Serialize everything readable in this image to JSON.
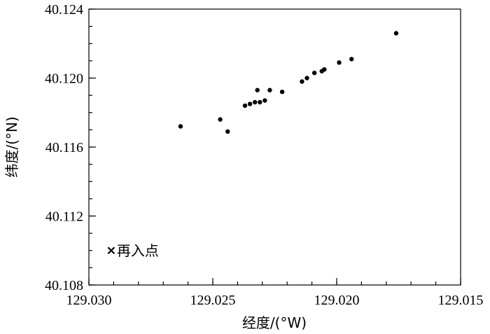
{
  "chart_data": {
    "type": "scatter",
    "xlabel": "经度/(°W)",
    "ylabel": "纬度/(°N)",
    "xlim": [
      129.03,
      129.015
    ],
    "ylim": [
      40.108,
      40.124
    ],
    "x_reversed": true,
    "x_ticks": [
      129.03,
      129.025,
      129.02,
      129.015
    ],
    "x_tick_labels": [
      "129.030",
      "129.025",
      "129.020",
      "129.015"
    ],
    "x_minor_step": 0.001,
    "y_ticks": [
      40.108,
      40.112,
      40.116,
      40.12,
      40.124
    ],
    "y_tick_labels": [
      "40.108",
      "40.112",
      "40.116",
      "40.120",
      "40.124"
    ],
    "y_minor_step": 0.001,
    "grid": false,
    "series": [
      {
        "marker": "dot",
        "points": [
          {
            "x": 129.0263,
            "y": 40.1172
          },
          {
            "x": 129.0247,
            "y": 40.1176
          },
          {
            "x": 129.0244,
            "y": 40.1169
          },
          {
            "x": 129.0237,
            "y": 40.1184
          },
          {
            "x": 129.0235,
            "y": 40.1185
          },
          {
            "x": 129.0233,
            "y": 40.1186
          },
          {
            "x": 129.0232,
            "y": 40.1193
          },
          {
            "x": 129.0231,
            "y": 40.1186
          },
          {
            "x": 129.0229,
            "y": 40.1187
          },
          {
            "x": 129.0227,
            "y": 40.1193
          },
          {
            "x": 129.0222,
            "y": 40.1192
          },
          {
            "x": 129.0214,
            "y": 40.1198
          },
          {
            "x": 129.0212,
            "y": 40.12
          },
          {
            "x": 129.0209,
            "y": 40.1203
          },
          {
            "x": 129.0206,
            "y": 40.1204
          },
          {
            "x": 129.0205,
            "y": 40.1205
          },
          {
            "x": 129.0199,
            "y": 40.1209
          },
          {
            "x": 129.0194,
            "y": 40.1211
          },
          {
            "x": 129.0176,
            "y": 40.1226
          }
        ]
      },
      {
        "name": "再入点",
        "marker": "x",
        "points": [
          {
            "x": 129.0291,
            "y": 40.11
          }
        ]
      }
    ]
  }
}
